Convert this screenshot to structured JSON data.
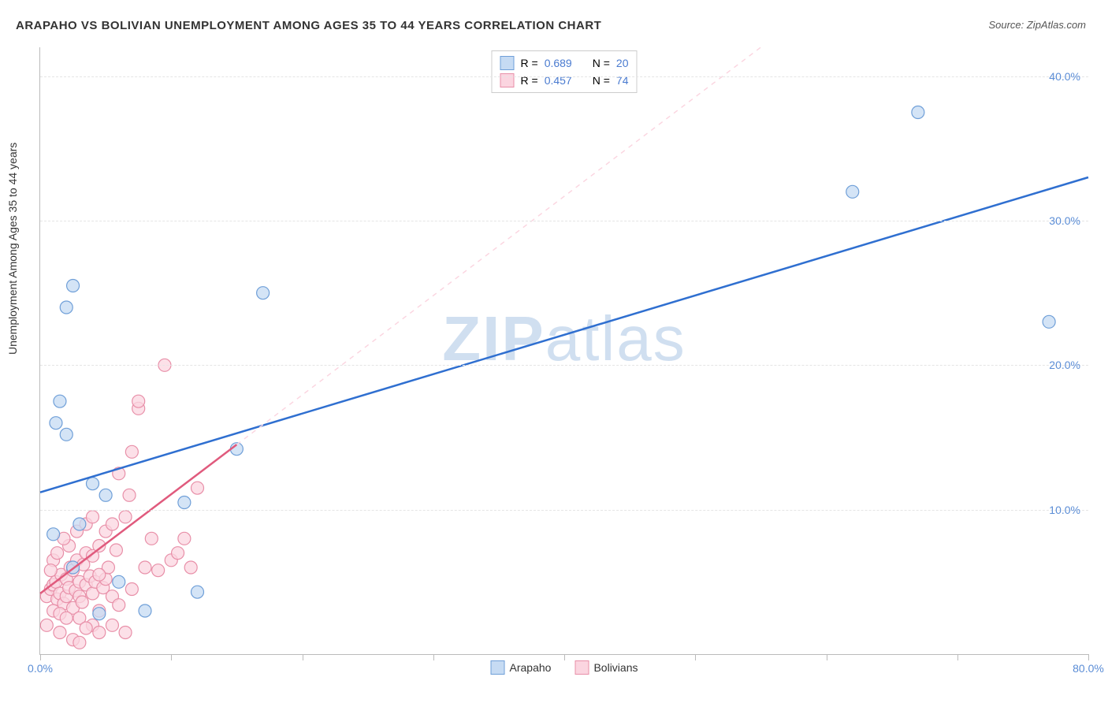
{
  "title": "ARAPAHO VS BOLIVIAN UNEMPLOYMENT AMONG AGES 35 TO 44 YEARS CORRELATION CHART",
  "source": "Source: ZipAtlas.com",
  "ylabel": "Unemployment Among Ages 35 to 44 years",
  "watermark": "ZIPatlas",
  "chart": {
    "type": "scatter",
    "background_color": "#ffffff",
    "grid_color": "#e5e5e5",
    "axis_color": "#bbbbbb",
    "text_color": "#333333",
    "tick_label_color": "#5b8dd6",
    "xlim": [
      0,
      80
    ],
    "ylim": [
      0,
      42
    ],
    "x_ticks": [
      0,
      10,
      20,
      30,
      40,
      50,
      60,
      70,
      80
    ],
    "x_tick_labels": {
      "0": "0.0%",
      "80": "80.0%"
    },
    "y_gridlines": [
      10,
      20,
      30,
      40
    ],
    "y_tick_labels": {
      "10": "10.0%",
      "20": "20.0%",
      "30": "30.0%",
      "40": "40.0%"
    },
    "marker_radius": 8,
    "marker_stroke_width": 1.2,
    "line_width": 2.5,
    "series": [
      {
        "name": "Arapaho",
        "fill": "#c6dbf3",
        "stroke": "#6f9fd8",
        "line_color": "#2f6fd0",
        "R": 0.689,
        "N": 20,
        "trend": {
          "x1": 0,
          "y1": 11.2,
          "x2": 80,
          "y2": 33.0
        },
        "dashed_extension": null,
        "points": [
          [
            1.0,
            8.3
          ],
          [
            1.2,
            16.0
          ],
          [
            1.5,
            17.5
          ],
          [
            2.0,
            24.0
          ],
          [
            2.5,
            25.5
          ],
          [
            2.0,
            15.2
          ],
          [
            4.0,
            11.8
          ],
          [
            5.0,
            11.0
          ],
          [
            8.0,
            3.0
          ],
          [
            11.0,
            10.5
          ],
          [
            12.0,
            4.3
          ],
          [
            15.0,
            14.2
          ],
          [
            17.0,
            25.0
          ],
          [
            62.0,
            32.0
          ],
          [
            67.0,
            37.5
          ],
          [
            77.0,
            23.0
          ],
          [
            4.5,
            2.8
          ],
          [
            3.0,
            9.0
          ],
          [
            6.0,
            5.0
          ],
          [
            2.5,
            6.0
          ]
        ]
      },
      {
        "name": "Bolivians",
        "fill": "#fbd5e0",
        "stroke": "#e88fa8",
        "line_color": "#e05a7d",
        "R": 0.457,
        "N": 74,
        "trend": {
          "x1": 0,
          "y1": 4.2,
          "x2": 15,
          "y2": 14.5
        },
        "dashed_extension": {
          "x1": 15,
          "y1": 14.5,
          "x2": 55,
          "y2": 42
        },
        "points": [
          [
            0.5,
            4.0
          ],
          [
            0.8,
            4.5
          ],
          [
            1.0,
            4.8
          ],
          [
            1.2,
            5.0
          ],
          [
            1.3,
            3.8
          ],
          [
            1.5,
            4.2
          ],
          [
            1.6,
            5.5
          ],
          [
            1.8,
            3.5
          ],
          [
            2.0,
            4.0
          ],
          [
            2.0,
            5.2
          ],
          [
            2.2,
            4.6
          ],
          [
            2.3,
            6.0
          ],
          [
            2.5,
            3.2
          ],
          [
            2.5,
            5.8
          ],
          [
            2.7,
            4.4
          ],
          [
            2.8,
            6.5
          ],
          [
            3.0,
            4.0
          ],
          [
            3.0,
            5.0
          ],
          [
            3.2,
            3.6
          ],
          [
            3.3,
            6.2
          ],
          [
            3.5,
            4.8
          ],
          [
            3.5,
            7.0
          ],
          [
            3.8,
            5.4
          ],
          [
            4.0,
            4.2
          ],
          [
            4.0,
            6.8
          ],
          [
            4.2,
            5.0
          ],
          [
            4.5,
            7.5
          ],
          [
            4.5,
            3.0
          ],
          [
            4.8,
            4.6
          ],
          [
            5.0,
            5.2
          ],
          [
            5.0,
            8.5
          ],
          [
            5.2,
            6.0
          ],
          [
            5.5,
            4.0
          ],
          [
            5.5,
            9.0
          ],
          [
            5.8,
            7.2
          ],
          [
            6.0,
            3.4
          ],
          [
            6.0,
            12.5
          ],
          [
            6.5,
            9.5
          ],
          [
            6.8,
            11.0
          ],
          [
            7.0,
            4.5
          ],
          [
            7.0,
            14.0
          ],
          [
            7.5,
            17.0
          ],
          [
            7.5,
            17.5
          ],
          [
            8.0,
            6.0
          ],
          [
            8.5,
            8.0
          ],
          [
            9.0,
            5.8
          ],
          [
            9.5,
            20.0
          ],
          [
            10.0,
            6.5
          ],
          [
            10.5,
            7.0
          ],
          [
            11.0,
            8.0
          ],
          [
            11.5,
            6.0
          ],
          [
            12.0,
            11.5
          ],
          [
            3.0,
            2.5
          ],
          [
            4.0,
            2.0
          ],
          [
            1.0,
            3.0
          ],
          [
            1.5,
            2.8
          ],
          [
            2.0,
            2.5
          ],
          [
            5.5,
            2.0
          ],
          [
            4.5,
            1.5
          ],
          [
            3.5,
            1.8
          ],
          [
            6.5,
            1.5
          ],
          [
            2.2,
            7.5
          ],
          [
            1.8,
            8.0
          ],
          [
            1.0,
            6.5
          ],
          [
            0.8,
            5.8
          ],
          [
            1.3,
            7.0
          ],
          [
            2.8,
            8.5
          ],
          [
            3.5,
            9.0
          ],
          [
            4.0,
            9.5
          ],
          [
            1.5,
            1.5
          ],
          [
            0.5,
            2.0
          ],
          [
            2.5,
            1.0
          ],
          [
            3.0,
            0.8
          ],
          [
            4.5,
            5.5
          ]
        ]
      }
    ]
  },
  "legend_bottom": [
    {
      "label": "Arapaho",
      "fill": "#c6dbf3",
      "stroke": "#6f9fd8"
    },
    {
      "label": "Bolivians",
      "fill": "#fbd5e0",
      "stroke": "#e88fa8"
    }
  ]
}
